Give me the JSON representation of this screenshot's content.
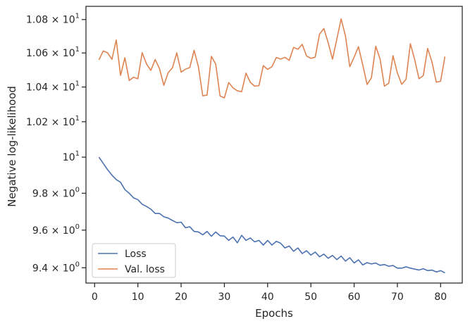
{
  "chart_data": {
    "type": "line",
    "xlabel": "Epochs",
    "ylabel": "Negative log-likelihood",
    "xlim": [
      -2.0,
      85.0
    ],
    "ylim": [
      9.32,
      10.88
    ],
    "y_scale": "log",
    "grid": false,
    "legend_position": "lower-left",
    "x_ticks": [
      0,
      10,
      20,
      30,
      40,
      50,
      60,
      70,
      80
    ],
    "x_tick_labels": [
      "0",
      "10",
      "20",
      "30",
      "40",
      "50",
      "60",
      "70",
      "80"
    ],
    "y_ticks": [
      {
        "value": 9.4,
        "mantissa": "9.4",
        "base": "10",
        "exp": "0"
      },
      {
        "value": 9.6,
        "mantissa": "9.6",
        "base": "10",
        "exp": "0"
      },
      {
        "value": 9.8,
        "mantissa": "9.8",
        "base": "10",
        "exp": "0"
      },
      {
        "value": 10.0,
        "mantissa": "",
        "base": "10",
        "exp": "1"
      },
      {
        "value": 10.2,
        "mantissa": "1.02",
        "base": "10",
        "exp": "1"
      },
      {
        "value": 10.4,
        "mantissa": "1.04",
        "base": "10",
        "exp": "1"
      },
      {
        "value": 10.6,
        "mantissa": "1.06",
        "base": "10",
        "exp": "1"
      },
      {
        "value": 10.8,
        "mantissa": "1.08",
        "base": "10",
        "exp": "1"
      }
    ],
    "series": [
      {
        "name": "Loss",
        "color": "#4c72b0",
        "x": [
          1,
          2,
          3,
          4,
          5,
          6,
          7,
          8,
          9,
          10,
          11,
          12,
          13,
          14,
          15,
          16,
          17,
          18,
          19,
          20,
          21,
          22,
          23,
          24,
          25,
          26,
          27,
          28,
          29,
          30,
          31,
          32,
          33,
          34,
          35,
          36,
          37,
          38,
          39,
          40,
          41,
          42,
          43,
          44,
          45,
          46,
          47,
          48,
          49,
          50,
          51,
          52,
          53,
          54,
          55,
          56,
          57,
          58,
          59,
          60,
          61,
          62,
          63,
          64,
          65,
          66,
          67,
          68,
          69,
          70,
          71,
          72,
          73,
          74,
          75,
          76,
          77,
          78,
          79,
          80,
          81
        ],
        "values": [
          10.0,
          9.965,
          9.93,
          9.9,
          9.875,
          9.86,
          9.82,
          9.8,
          9.775,
          9.765,
          9.74,
          9.728,
          9.713,
          9.69,
          9.69,
          9.672,
          9.665,
          9.652,
          9.64,
          9.643,
          9.613,
          9.618,
          9.593,
          9.59,
          9.575,
          9.593,
          9.567,
          9.59,
          9.57,
          9.568,
          9.545,
          9.563,
          9.532,
          9.572,
          9.545,
          9.558,
          9.537,
          9.545,
          9.52,
          9.545,
          9.52,
          9.54,
          9.53,
          9.505,
          9.515,
          9.487,
          9.505,
          9.475,
          9.49,
          9.467,
          9.483,
          9.458,
          9.472,
          9.45,
          9.465,
          9.443,
          9.462,
          9.435,
          9.453,
          9.425,
          9.442,
          9.415,
          9.427,
          9.42,
          9.425,
          9.413,
          9.417,
          9.408,
          9.412,
          9.398,
          9.398,
          9.405,
          9.398,
          9.393,
          9.388,
          9.395,
          9.385,
          9.388,
          9.378,
          9.385,
          9.373
        ]
      },
      {
        "name": "Val. loss",
        "color": "#dd8452",
        "x": [
          1,
          2,
          3,
          4,
          5,
          6,
          7,
          8,
          9,
          10,
          11,
          12,
          13,
          14,
          15,
          16,
          17,
          18,
          19,
          20,
          21,
          22,
          23,
          24,
          25,
          26,
          27,
          28,
          29,
          30,
          31,
          32,
          33,
          34,
          35,
          36,
          37,
          38,
          39,
          40,
          41,
          42,
          43,
          44,
          45,
          46,
          47,
          48,
          49,
          50,
          51,
          52,
          53,
          54,
          55,
          56,
          57,
          58,
          59,
          60,
          61,
          62,
          63,
          64,
          65,
          66,
          67,
          68,
          69,
          70,
          71,
          72,
          73,
          74,
          75,
          76,
          77,
          78,
          79,
          80,
          81
        ],
        "values": [
          10.559,
          10.612,
          10.601,
          10.562,
          10.677,
          10.468,
          10.572,
          10.438,
          10.457,
          10.448,
          10.602,
          10.535,
          10.497,
          10.561,
          10.508,
          10.41,
          10.483,
          10.513,
          10.601,
          10.487,
          10.504,
          10.514,
          10.616,
          10.518,
          10.349,
          10.353,
          10.58,
          10.534,
          10.348,
          10.337,
          10.426,
          10.395,
          10.378,
          10.373,
          10.481,
          10.427,
          10.405,
          10.408,
          10.525,
          10.503,
          10.519,
          10.573,
          10.564,
          10.574,
          10.556,
          10.633,
          10.622,
          10.651,
          10.582,
          10.568,
          10.575,
          10.712,
          10.746,
          10.661,
          10.563,
          10.682,
          10.804,
          10.7,
          10.519,
          10.575,
          10.637,
          10.529,
          10.415,
          10.454,
          10.64,
          10.564,
          10.405,
          10.422,
          10.584,
          10.482,
          10.416,
          10.445,
          10.655,
          10.561,
          10.448,
          10.467,
          10.627,
          10.547,
          10.428,
          10.434,
          10.579
        ]
      }
    ]
  }
}
